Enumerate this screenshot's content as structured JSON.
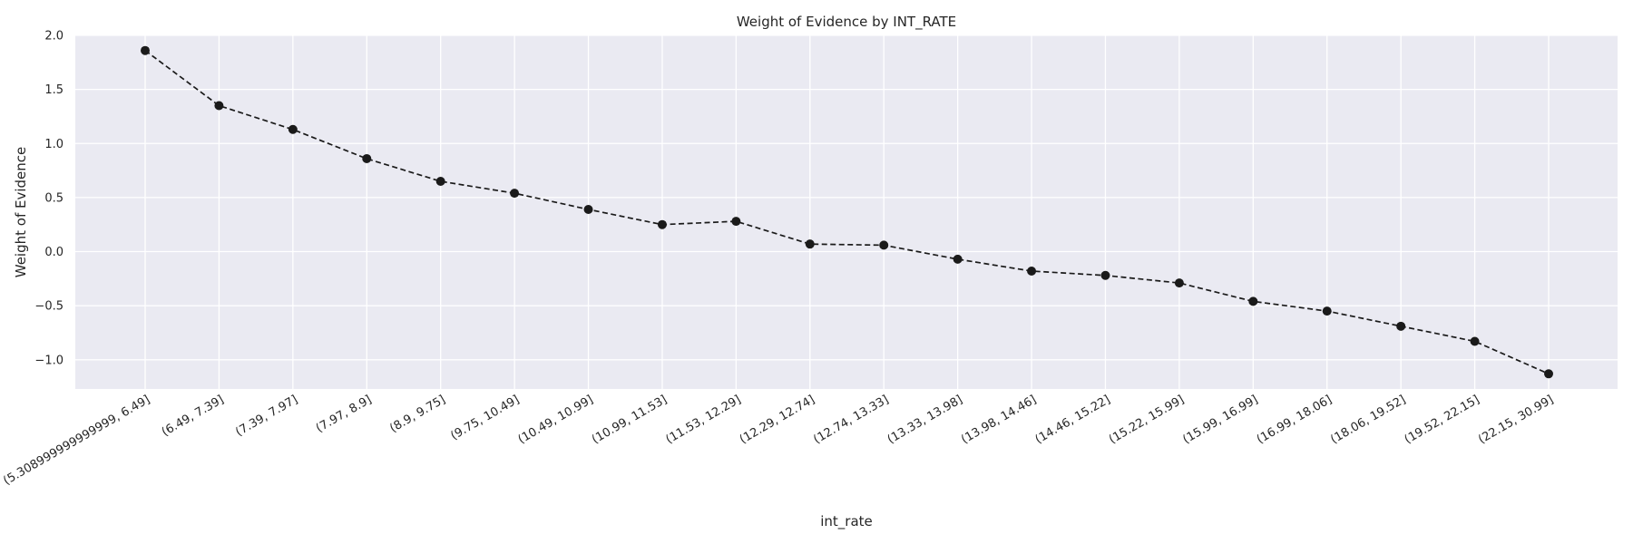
{
  "chart_data": {
    "type": "line",
    "title": "Weight of Evidence by INT_RATE",
    "xlabel": "int_rate",
    "ylabel": "Weight of Evidence",
    "ylim": [
      -1.27,
      2.0
    ],
    "yticks": [
      2.0,
      1.5,
      1.0,
      0.5,
      0.0,
      -0.5,
      -1.0
    ],
    "ytick_labels": [
      "2.0",
      "1.5",
      "1.0",
      "0.5",
      "0.0",
      "−0.5",
      "−1.0"
    ],
    "grid": true,
    "categories": [
      "(5.308999999999999, 6.49]",
      "(6.49, 7.39]",
      "(7.39, 7.97]",
      "(7.97, 8.9]",
      "(8.9, 9.75]",
      "(9.75, 10.49]",
      "(10.49, 10.99]",
      "(10.99, 11.53]",
      "(11.53, 12.29]",
      "(12.29, 12.74]",
      "(12.74, 13.33]",
      "(13.33, 13.98]",
      "(13.98, 14.46]",
      "(14.46, 15.22]",
      "(15.22, 15.99]",
      "(15.99, 16.99]",
      "(16.99, 18.06]",
      "(18.06, 19.52]",
      "(19.52, 22.15]",
      "(22.15, 30.99]"
    ],
    "series": [
      {
        "values": [
          1.86,
          1.35,
          1.13,
          0.86,
          0.65,
          0.54,
          0.39,
          0.25,
          0.28,
          0.07,
          0.06,
          -0.07,
          -0.18,
          -0.22,
          -0.29,
          -0.46,
          -0.55,
          -0.69,
          -0.83,
          -1.13
        ],
        "color": "#1a1a1a",
        "line_style": "dashed",
        "marker": "circle"
      }
    ],
    "colors": {
      "plot_background": "#eaeaf2",
      "grid": "#ffffff",
      "text": "#262626"
    }
  }
}
